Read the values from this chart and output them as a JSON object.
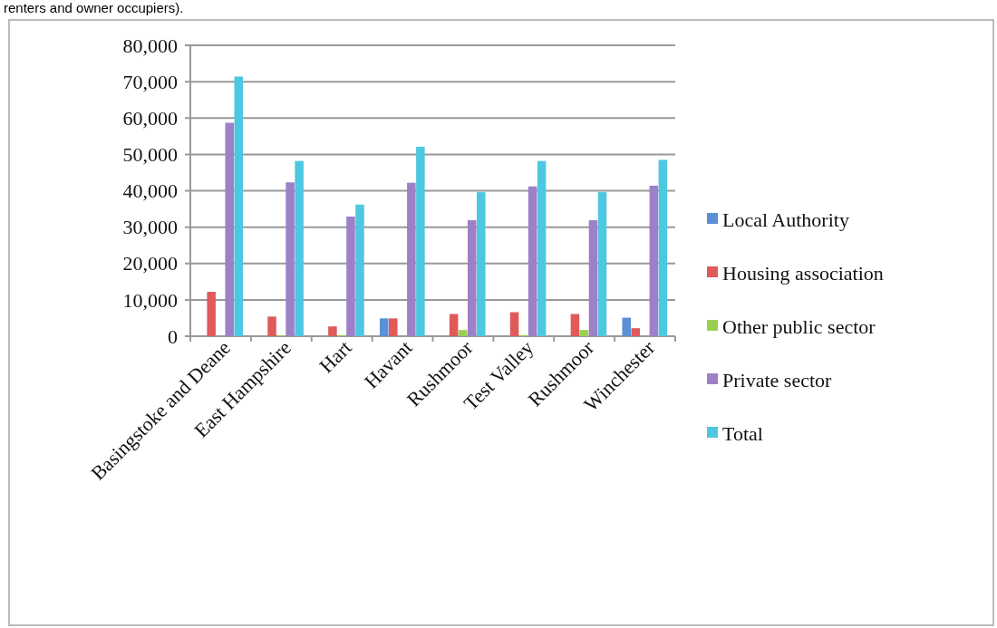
{
  "chart_data": {
    "type": "bar",
    "annotations": [
      "renters and owner occupiers)."
    ],
    "categories": [
      "Basingstoke and Deane",
      "East Hampshire",
      "Hart",
      "Havant",
      "Rushmoor",
      "Test Valley",
      "Rushmoor",
      "Winchester"
    ],
    "series": [
      {
        "name": "Local Authority",
        "color": "#5b8fd6",
        "values": [
          0,
          0,
          0,
          4900,
          0,
          0,
          0,
          5100
        ]
      },
      {
        "name": "Housing association",
        "color": "#e05a5a",
        "values": [
          12200,
          5400,
          2700,
          4900,
          6100,
          6600,
          6100,
          2200
        ]
      },
      {
        "name": "Other public sector",
        "color": "#9bcf4f",
        "values": [
          0,
          200,
          300,
          0,
          1700,
          300,
          1700,
          0
        ]
      },
      {
        "name": "Private sector",
        "color": "#9d80c8",
        "values": [
          58700,
          42300,
          32900,
          42200,
          31900,
          41200,
          31900,
          41400
        ]
      },
      {
        "name": "Total",
        "color": "#4dc8e0",
        "values": [
          71400,
          48200,
          36200,
          52100,
          39600,
          48200,
          39600,
          48500
        ]
      }
    ],
    "ylim": [
      0,
      80000
    ],
    "yticks": [
      {
        "value": 0,
        "label": "0"
      },
      {
        "value": 10000,
        "label": "10,000"
      },
      {
        "value": 20000,
        "label": "20,000"
      },
      {
        "value": 30000,
        "label": "30,000"
      },
      {
        "value": 40000,
        "label": "40,000"
      },
      {
        "value": 50000,
        "label": "50,000"
      },
      {
        "value": 60000,
        "label": "60,000"
      },
      {
        "value": 70000,
        "label": "70,000"
      },
      {
        "value": 80000,
        "label": "80,000"
      }
    ],
    "grid": "y",
    "legend": "right"
  }
}
